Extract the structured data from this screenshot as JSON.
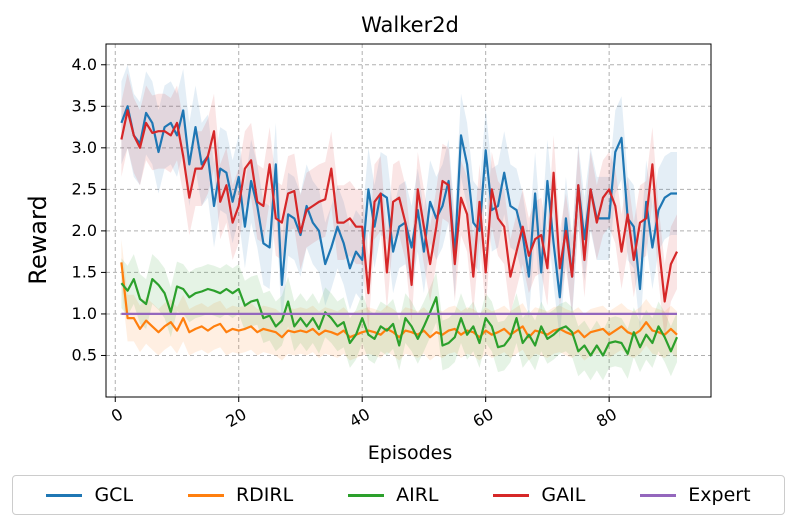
{
  "chart_data": {
    "type": "line",
    "title": "Walker2d",
    "xlabel": "Episodes",
    "ylabel": "Reward",
    "xlim": [
      -1.5,
      96.5
    ],
    "ylim": [
      0.0,
      4.25
    ],
    "xticks": [
      "0",
      "20",
      "40",
      "60",
      "80"
    ],
    "xtick_values": [
      0,
      20,
      40,
      60,
      80
    ],
    "yticks": [
      "0.5",
      "1.0",
      "1.5",
      "2.0",
      "2.5",
      "3.0",
      "3.5",
      "4.0"
    ],
    "ytick_values": [
      0.5,
      1.0,
      1.5,
      2.0,
      2.5,
      3.0,
      3.5,
      4.0
    ],
    "grid": true,
    "legend_position": "bottom",
    "x_start": 1,
    "series": [
      {
        "name": "GCL",
        "color": "#1f77b4",
        "band": 0.5,
        "values": [
          3.3,
          3.5,
          3.15,
          3.05,
          3.42,
          3.3,
          2.95,
          3.25,
          3.3,
          3.15,
          3.45,
          2.8,
          3.25,
          2.8,
          2.9,
          2.3,
          2.75,
          2.7,
          2.35,
          2.65,
          2.05,
          2.6,
          2.3,
          1.85,
          1.8,
          2.8,
          1.35,
          2.2,
          2.15,
          1.95,
          2.3,
          2.1,
          2.0,
          1.6,
          1.8,
          2.05,
          1.85,
          1.55,
          1.75,
          1.65,
          2.5,
          2.05,
          2.45,
          2.4,
          1.75,
          2.05,
          2.1,
          1.8,
          2.25,
          1.75,
          2.35,
          2.15,
          2.3,
          2.6,
          1.7,
          3.15,
          2.8,
          2.1,
          2.0,
          2.97,
          2.25,
          2.3,
          2.7,
          2.3,
          2.25,
          1.95,
          1.45,
          2.45,
          1.5,
          2.6,
          1.85,
          1.2,
          2.15,
          1.45,
          2.55,
          1.9,
          2.5,
          2.15,
          2.15,
          2.15,
          2.95,
          3.12,
          2.15,
          2.05,
          1.3,
          2.35,
          1.8,
          2.25,
          2.4,
          2.45,
          2.45
        ]
      },
      {
        "name": "RDIRL",
        "color": "#ff7f0e",
        "band": 0.28,
        "values": [
          1.62,
          0.95,
          0.95,
          0.82,
          0.92,
          0.85,
          0.78,
          0.85,
          0.9,
          0.8,
          0.95,
          0.78,
          0.82,
          0.85,
          0.8,
          0.85,
          0.88,
          0.78,
          0.82,
          0.8,
          0.82,
          0.85,
          0.78,
          0.82,
          0.8,
          0.78,
          0.72,
          0.8,
          0.78,
          0.8,
          0.78,
          0.82,
          0.75,
          0.8,
          0.78,
          0.75,
          0.8,
          0.72,
          0.75,
          0.78,
          0.8,
          0.78,
          0.75,
          0.82,
          0.78,
          0.72,
          0.8,
          0.78,
          0.75,
          0.8,
          0.72,
          0.78,
          0.75,
          0.8,
          0.82,
          0.75,
          0.8,
          0.78,
          0.72,
          0.8,
          0.75,
          0.78,
          0.82,
          0.75,
          0.8,
          0.85,
          0.72,
          0.8,
          0.78,
          0.75,
          0.8,
          0.82,
          0.78,
          0.75,
          0.8,
          0.72,
          0.78,
          0.8,
          0.82,
          0.75,
          0.8,
          0.85,
          0.78,
          0.75,
          0.8,
          0.9,
          0.8,
          0.78,
          0.75,
          0.82,
          0.75
        ]
      },
      {
        "name": "AIRL",
        "color": "#2ca02c",
        "band": 0.3,
        "values": [
          1.37,
          1.28,
          1.42,
          1.18,
          1.12,
          1.42,
          1.35,
          1.25,
          1.02,
          1.33,
          1.3,
          1.2,
          1.25,
          1.27,
          1.3,
          1.28,
          1.25,
          1.3,
          1.25,
          1.3,
          1.1,
          1.15,
          1.17,
          0.95,
          0.98,
          0.85,
          0.92,
          1.15,
          0.85,
          0.95,
          0.85,
          0.95,
          0.82,
          1.02,
          0.95,
          0.85,
          0.9,
          0.65,
          0.75,
          0.95,
          0.75,
          0.7,
          0.85,
          0.8,
          0.88,
          0.62,
          0.95,
          0.85,
          0.7,
          0.85,
          1.02,
          1.2,
          0.62,
          0.65,
          0.72,
          0.95,
          0.75,
          0.85,
          0.65,
          0.95,
          0.85,
          0.6,
          0.62,
          0.72,
          0.95,
          0.65,
          0.75,
          0.62,
          0.85,
          0.7,
          0.75,
          0.82,
          0.85,
          0.78,
          0.55,
          0.62,
          0.5,
          0.62,
          0.5,
          0.65,
          0.67,
          0.65,
          0.52,
          0.78,
          0.6,
          0.75,
          0.65,
          0.85,
          0.72,
          0.55,
          0.72
        ]
      },
      {
        "name": "GAIL",
        "color": "#d62728",
        "band": 0.45,
        "values": [
          3.1,
          3.45,
          3.15,
          3.0,
          3.3,
          3.18,
          3.2,
          3.2,
          3.15,
          3.3,
          2.9,
          2.4,
          2.75,
          2.75,
          2.9,
          3.2,
          2.35,
          2.55,
          2.1,
          2.3,
          2.75,
          2.85,
          2.35,
          2.3,
          2.8,
          2.15,
          2.1,
          2.45,
          2.48,
          1.98,
          2.25,
          2.3,
          2.35,
          2.38,
          2.75,
          2.1,
          2.1,
          2.15,
          2.05,
          2.05,
          1.25,
          2.35,
          2.45,
          1.5,
          2.35,
          2.4,
          2.1,
          1.35,
          2.5,
          2.05,
          1.6,
          2.05,
          2.6,
          2.55,
          1.6,
          2.4,
          2.2,
          1.45,
          2.35,
          1.5,
          2.5,
          2.15,
          2.05,
          1.45,
          1.75,
          2.05,
          1.7,
          1.9,
          1.95,
          1.55,
          2.7,
          1.55,
          2.0,
          1.45,
          2.55,
          1.65,
          2.5,
          2.1,
          2.4,
          2.5,
          2.3,
          1.75,
          2.2,
          1.65,
          2.1,
          2.15,
          2.8,
          1.85,
          1.15,
          1.6,
          1.75
        ]
      },
      {
        "name": "Expert",
        "color": "#9467bd",
        "band": 0,
        "values": [
          1.0,
          1.0,
          1.0,
          1.0,
          1.0,
          1.0,
          1.0,
          1.0,
          1.0,
          1.0,
          1.0,
          1.0,
          1.0,
          1.0,
          1.0,
          1.0,
          1.0,
          1.0,
          1.0,
          1.0,
          1.0,
          1.0,
          1.0,
          1.0,
          1.0,
          1.0,
          1.0,
          1.0,
          1.0,
          1.0,
          1.0,
          1.0,
          1.0,
          1.0,
          1.0,
          1.0,
          1.0,
          1.0,
          1.0,
          1.0,
          1.0,
          1.0,
          1.0,
          1.0,
          1.0,
          1.0,
          1.0,
          1.0,
          1.0,
          1.0,
          1.0,
          1.0,
          1.0,
          1.0,
          1.0,
          1.0,
          1.0,
          1.0,
          1.0,
          1.0,
          1.0,
          1.0,
          1.0,
          1.0,
          1.0,
          1.0,
          1.0,
          1.0,
          1.0,
          1.0,
          1.0,
          1.0,
          1.0,
          1.0,
          1.0,
          1.0,
          1.0,
          1.0,
          1.0,
          1.0,
          1.0,
          1.0,
          1.0,
          1.0,
          1.0,
          1.0,
          1.0,
          1.0,
          1.0,
          1.0,
          1.0
        ]
      }
    ]
  }
}
